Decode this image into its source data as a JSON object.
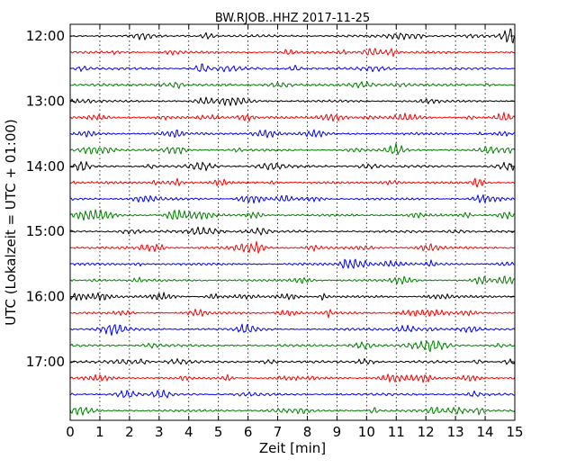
{
  "chart_data": {
    "type": "line",
    "title": "BW.RJOB..HHZ 2017-11-25",
    "xlabel": "Zeit  [min]",
    "ylabel": "UTC (Lokalzeit = UTC + 01:00)",
    "xlim": [
      0,
      15
    ],
    "x_ticks": [
      "0",
      "1",
      "2",
      "3",
      "4",
      "5",
      "6",
      "7",
      "8",
      "9",
      "10",
      "11",
      "12",
      "13",
      "14",
      "15"
    ],
    "y_ticks": [
      {
        "label": "12:00",
        "minutes": 720
      },
      {
        "label": "13:00",
        "minutes": 780
      },
      {
        "label": "14:00",
        "minutes": 840
      },
      {
        "label": "15:00",
        "minutes": 900
      },
      {
        "label": "16:00",
        "minutes": 960
      },
      {
        "label": "17:00",
        "minutes": 1020
      }
    ],
    "trace_interval_min": 15,
    "first_trace_min": 720,
    "trace_count": 24,
    "colors": [
      "#000000",
      "#ff0000",
      "#0000ff",
      "#008000"
    ],
    "grid": "vertical dotted"
  }
}
